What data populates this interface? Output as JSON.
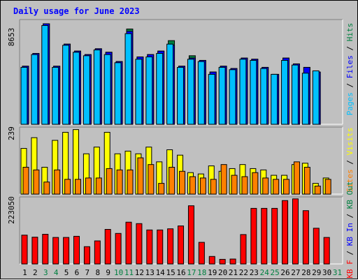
{
  "colors": {
    "background": "#c0c0c0",
    "hits": "#008040",
    "files": "#0000ff",
    "pages": "#00c0ff",
    "visits": "#ffff00",
    "sites": "#ff8000",
    "kbytes": "#ff0000",
    "title": "#0000ff",
    "weekend": "#008040",
    "weekday": "#000000"
  },
  "chart_data": [
    {
      "type": "bar",
      "title": "Daily usage for June 2023",
      "ymax_label": "8653",
      "ylim": [
        0,
        8653
      ],
      "categories": [
        "1",
        "2",
        "3",
        "4",
        "5",
        "6",
        "7",
        "8",
        "9",
        "10",
        "11",
        "12",
        "13",
        "14",
        "15",
        "16",
        "17",
        "18",
        "19",
        "20",
        "21",
        "22",
        "23",
        "24",
        "25",
        "26",
        "27",
        "28",
        "29",
        "30",
        "31"
      ],
      "weekend_days": [
        "3",
        "4",
        "10",
        "11",
        "17",
        "18",
        "24",
        "25",
        "31"
      ],
      "legend": [
        "Pages",
        "Files",
        "Hits"
      ],
      "series": [
        {
          "name": "Hits",
          "values": [
            5000,
            6100,
            8653,
            5000,
            6900,
            6300,
            6000,
            6500,
            6200,
            5400,
            8200,
            5800,
            6000,
            6300,
            7200,
            5000,
            5900,
            5500,
            4500,
            5000,
            4800,
            5700,
            5600,
            4900,
            4300,
            5700,
            5200,
            4900,
            0,
            0,
            0
          ]
        },
        {
          "name": "Files",
          "values": [
            5000,
            6100,
            8653,
            5000,
            6900,
            6300,
            6000,
            6500,
            6200,
            5400,
            8000,
            5800,
            6000,
            6300,
            6800,
            5000,
            5700,
            5500,
            4500,
            5000,
            4800,
            5700,
            5600,
            4900,
            4300,
            5700,
            5200,
            4900,
            4500,
            0,
            0
          ]
        },
        {
          "name": "Pages",
          "values": [
            4900,
            6000,
            8500,
            4900,
            6800,
            6200,
            5900,
            6400,
            6000,
            5300,
            7800,
            5600,
            5800,
            6100,
            6900,
            4900,
            5600,
            5400,
            4300,
            4900,
            4700,
            5600,
            5500,
            4800,
            4300,
            5500,
            5100,
            4400,
            4600,
            0,
            0
          ]
        }
      ]
    },
    {
      "type": "bar",
      "ymax_label": "239",
      "ylim": [
        0,
        239
      ],
      "categories": [
        "1",
        "2",
        "3",
        "4",
        "5",
        "6",
        "7",
        "8",
        "9",
        "10",
        "11",
        "12",
        "13",
        "14",
        "15",
        "16",
        "17",
        "18",
        "19",
        "20",
        "21",
        "22",
        "23",
        "24",
        "25",
        "26",
        "27",
        "28",
        "29",
        "30",
        "31"
      ],
      "legend": [
        "Visits",
        "Sites"
      ],
      "series": [
        {
          "name": "Visits",
          "values": [
            170,
            210,
            100,
            200,
            230,
            240,
            150,
            175,
            230,
            150,
            160,
            150,
            175,
            120,
            165,
            145,
            80,
            75,
            105,
            85,
            95,
            110,
            95,
            90,
            70,
            70,
            110,
            115,
            40,
            60,
            0
          ]
        },
        {
          "name": "Sites",
          "values": [
            100,
            90,
            45,
            90,
            55,
            55,
            60,
            60,
            95,
            90,
            90,
            135,
            110,
            40,
            100,
            85,
            65,
            60,
            55,
            110,
            70,
            65,
            80,
            60,
            55,
            55,
            120,
            100,
            30,
            55,
            0
          ]
        }
      ]
    },
    {
      "type": "bar",
      "ymax_label": "223050",
      "ylim": [
        0,
        223050
      ],
      "categories": [
        "1",
        "2",
        "3",
        "4",
        "5",
        "6",
        "7",
        "8",
        "9",
        "10",
        "11",
        "12",
        "13",
        "14",
        "15",
        "16",
        "17",
        "18",
        "19",
        "20",
        "21",
        "22",
        "23",
        "24",
        "25",
        "26",
        "27",
        "28",
        "29",
        "30",
        "31"
      ],
      "legend": [
        "KB F",
        "KB In",
        "KB Out"
      ],
      "series": [
        {
          "name": "KB F",
          "values": [
            100000,
            93000,
            103000,
            92000,
            92000,
            96000,
            60000,
            80000,
            120000,
            106000,
            145000,
            140000,
            118000,
            118000,
            122000,
            132000,
            202000,
            75000,
            26000,
            16000,
            17000,
            102000,
            193000,
            193000,
            193000,
            220000,
            226000,
            185000,
            124000,
            92000,
            0
          ]
        }
      ]
    }
  ]
}
